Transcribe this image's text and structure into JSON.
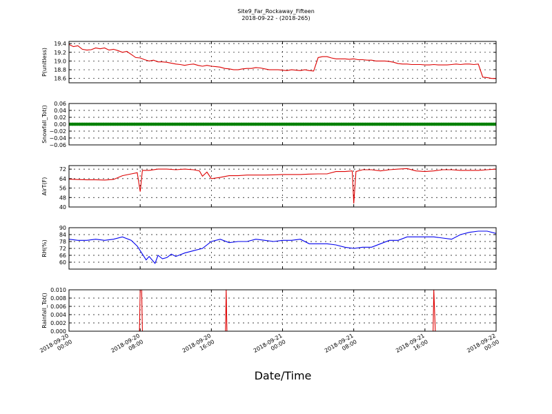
{
  "figure": {
    "title_line1": "Site9_Far_Rockaway_Fifteen",
    "title_line2": "2018-09-22 - (2018-265)",
    "xlabel": "Date/Time"
  },
  "chart_data": [
    {
      "type": "line",
      "ylabel": "P(unitless)",
      "xlim": [
        "2018-09-20 00:00",
        "2018-09-22 00:00"
      ],
      "ylim": [
        18.5,
        19.45
      ],
      "yticks": [
        18.6,
        18.8,
        19.0,
        19.2,
        19.4
      ],
      "ytick_labels": [
        "18.6",
        "18.8",
        "19.0",
        "19.2",
        "19.4"
      ],
      "grid": true,
      "color": "#dd0000",
      "series": [
        {
          "x": [
            "2018-09-20 00:00",
            "2018-09-20 00:30",
            "2018-09-20 01:00",
            "2018-09-20 01:30",
            "2018-09-20 02:00",
            "2018-09-20 02:30",
            "2018-09-20 03:00",
            "2018-09-20 03:30",
            "2018-09-20 04:00",
            "2018-09-20 04:30",
            "2018-09-20 05:00",
            "2018-09-20 05:30",
            "2018-09-20 06:00",
            "2018-09-20 06:30",
            "2018-09-20 07:00",
            "2018-09-20 07:30",
            "2018-09-20 08:00",
            "2018-09-20 08:30",
            "2018-09-20 09:00",
            "2018-09-20 09:30",
            "2018-09-20 10:00",
            "2018-09-20 10:30",
            "2018-09-20 11:00",
            "2018-09-20 11:30",
            "2018-09-20 12:00",
            "2018-09-20 12:30",
            "2018-09-20 13:00",
            "2018-09-20 13:30",
            "2018-09-20 14:00",
            "2018-09-20 14:30",
            "2018-09-20 15:00",
            "2018-09-20 15:30",
            "2018-09-20 16:00",
            "2018-09-20 16:30",
            "2018-09-20 17:00",
            "2018-09-20 17:30",
            "2018-09-20 18:00",
            "2018-09-20 18:30",
            "2018-09-20 19:00",
            "2018-09-20 19:30",
            "2018-09-20 20:00",
            "2018-09-20 20:30",
            "2018-09-20 21:00",
            "2018-09-20 21:30",
            "2018-09-20 22:00",
            "2018-09-20 22:30",
            "2018-09-20 23:00",
            "2018-09-20 23:30",
            "2018-09-21 00:00",
            "2018-09-21 00:30",
            "2018-09-21 01:00",
            "2018-09-21 01:30",
            "2018-09-21 02:00",
            "2018-09-21 02:30",
            "2018-09-21 03:00",
            "2018-09-21 03:30",
            "2018-09-21 04:00",
            "2018-09-21 04:30",
            "2018-09-21 05:00",
            "2018-09-21 05:30",
            "2018-09-21 06:00",
            "2018-09-21 06:30",
            "2018-09-21 07:00",
            "2018-09-21 07:30",
            "2018-09-21 08:00",
            "2018-09-21 08:30",
            "2018-09-21 09:00",
            "2018-09-21 09:30",
            "2018-09-21 10:00",
            "2018-09-21 10:30",
            "2018-09-21 11:00",
            "2018-09-21 11:30",
            "2018-09-21 12:00",
            "2018-09-21 12:30",
            "2018-09-21 13:00",
            "2018-09-21 13:30",
            "2018-09-21 14:00",
            "2018-09-21 14:30",
            "2018-09-21 15:00",
            "2018-09-21 15:30",
            "2018-09-21 16:00",
            "2018-09-21 16:30",
            "2018-09-21 17:00",
            "2018-09-21 17:30",
            "2018-09-21 18:00",
            "2018-09-21 18:30",
            "2018-09-21 19:00",
            "2018-09-21 19:30",
            "2018-09-21 20:00",
            "2018-09-21 20:30",
            "2018-09-21 21:00",
            "2018-09-21 21:30",
            "2018-09-21 22:00",
            "2018-09-21 22:30",
            "2018-09-21 23:00",
            "2018-09-21 23:30",
            "2018-09-22 00:00"
          ],
          "y": [
            19.38,
            19.33,
            19.35,
            19.27,
            19.25,
            19.26,
            19.3,
            19.28,
            19.3,
            19.25,
            19.27,
            19.24,
            19.2,
            19.22,
            19.15,
            19.08,
            19.07,
            19.03,
            19.0,
            19.02,
            18.98,
            18.98,
            18.97,
            18.95,
            18.93,
            18.92,
            18.9,
            18.92,
            18.93,
            18.9,
            18.88,
            18.9,
            18.88,
            18.87,
            18.86,
            18.83,
            18.82,
            18.8,
            18.8,
            18.82,
            18.83,
            18.83,
            18.85,
            18.84,
            18.82,
            18.8,
            18.8,
            18.8,
            18.79,
            18.78,
            18.8,
            18.79,
            18.78,
            18.8,
            18.78,
            18.77,
            19.08,
            19.1,
            19.1,
            19.07,
            19.05,
            19.05,
            19.05,
            19.04,
            19.05,
            19.03,
            19.03,
            19.02,
            19.02,
            19.0,
            19.0,
            19.0,
            18.99,
            18.97,
            18.94,
            18.93,
            18.93,
            18.92,
            18.92,
            18.92,
            18.91,
            18.91,
            18.92,
            18.91,
            18.91,
            18.91,
            18.92,
            18.93,
            18.92,
            18.93,
            18.93,
            18.92,
            18.93,
            18.63,
            18.62,
            18.6,
            18.6
          ]
        }
      ]
    },
    {
      "type": "scatter",
      "ylabel": "Snowfall_Tot()",
      "xlim": [
        "2018-09-20 00:00",
        "2018-09-22 00:00"
      ],
      "ylim": [
        -0.06,
        0.06
      ],
      "yticks": [
        -0.06,
        -0.04,
        -0.02,
        0.0,
        0.02,
        0.04,
        0.06
      ],
      "ytick_labels": [
        "−0.06",
        "−0.04",
        "−0.02",
        "0.00",
        "0.02",
        "0.04",
        "0.06"
      ],
      "grid": true,
      "color": "#008000",
      "series": [
        {
          "constant_y": 0.0
        }
      ]
    },
    {
      "type": "line",
      "ylabel": "AirT(F)",
      "xlim": [
        "2018-09-20 00:00",
        "2018-09-22 00:00"
      ],
      "ylim": [
        40,
        75
      ],
      "yticks": [
        40,
        48,
        56,
        64,
        72
      ],
      "ytick_labels": [
        "40",
        "48",
        "56",
        "64",
        "72"
      ],
      "grid": true,
      "color": "#dd0000",
      "series": [
        {
          "x": [
            "2018-09-20 00:00",
            "2018-09-20 01:00",
            "2018-09-20 02:00",
            "2018-09-20 03:00",
            "2018-09-20 04:00",
            "2018-09-20 05:00",
            "2018-09-20 06:00",
            "2018-09-20 07:00",
            "2018-09-20 07:40",
            "2018-09-20 08:00",
            "2018-09-20 08:15",
            "2018-09-20 09:00",
            "2018-09-20 10:00",
            "2018-09-20 11:00",
            "2018-09-20 12:00",
            "2018-09-20 13:00",
            "2018-09-20 14:00",
            "2018-09-20 14:40",
            "2018-09-20 15:00",
            "2018-09-20 15:30",
            "2018-09-20 16:00",
            "2018-09-20 17:00",
            "2018-09-20 18:00",
            "2018-09-20 19:00",
            "2018-09-20 20:00",
            "2018-09-20 21:00",
            "2018-09-20 22:00",
            "2018-09-20 23:00",
            "2018-09-21 00:00",
            "2018-09-21 01:00",
            "2018-09-21 02:00",
            "2018-09-21 03:00",
            "2018-09-21 04:00",
            "2018-09-21 05:00",
            "2018-09-21 06:00",
            "2018-09-21 07:00",
            "2018-09-21 07:50",
            "2018-09-21 08:00",
            "2018-09-21 08:15",
            "2018-09-21 09:00",
            "2018-09-21 10:00",
            "2018-09-21 11:00",
            "2018-09-21 12:00",
            "2018-09-21 13:00",
            "2018-09-21 14:00",
            "2018-09-21 15:00",
            "2018-09-21 16:00",
            "2018-09-21 17:00",
            "2018-09-21 18:00",
            "2018-09-21 19:00",
            "2018-09-21 20:00",
            "2018-09-21 21:00",
            "2018-09-21 22:00",
            "2018-09-21 23:00",
            "2018-09-22 00:00"
          ],
          "y": [
            63.5,
            63.2,
            63.0,
            63.0,
            62.8,
            63.3,
            66.5,
            68.0,
            69.0,
            53.0,
            71.0,
            71.0,
            72.0,
            72.0,
            71.5,
            72.0,
            71.5,
            70.5,
            66.0,
            69.5,
            64.0,
            65.0,
            66.5,
            66.5,
            67.0,
            67.0,
            67.0,
            67.2,
            67.5,
            67.5,
            67.5,
            67.8,
            68.0,
            68.0,
            70.0,
            70.0,
            70.5,
            43.0,
            70.0,
            71.5,
            71.5,
            70.5,
            71.5,
            72.0,
            72.5,
            70.5,
            70.0,
            70.5,
            71.5,
            71.5,
            71.0,
            71.0,
            71.0,
            71.5,
            72.0
          ]
        }
      ]
    },
    {
      "type": "line",
      "ylabel": "RH(%)",
      "xlim": [
        "2018-09-20 00:00",
        "2018-09-22 00:00"
      ],
      "ylim": [
        54,
        90
      ],
      "yticks": [
        60,
        66,
        72,
        78,
        84,
        90
      ],
      "ytick_labels": [
        "60",
        "66",
        "72",
        "78",
        "84",
        "90"
      ],
      "grid": true,
      "color": "#0000ee",
      "series": [
        {
          "x": [
            "2018-09-20 00:00",
            "2018-09-20 01:00",
            "2018-09-20 02:00",
            "2018-09-20 03:00",
            "2018-09-20 04:00",
            "2018-09-20 05:00",
            "2018-09-20 06:00",
            "2018-09-20 07:00",
            "2018-09-20 07:40",
            "2018-09-20 08:00",
            "2018-09-20 08:40",
            "2018-09-20 09:00",
            "2018-09-20 09:40",
            "2018-09-20 10:00",
            "2018-09-20 10:30",
            "2018-09-20 11:00",
            "2018-09-20 11:30",
            "2018-09-20 12:00",
            "2018-09-20 13:00",
            "2018-09-20 14:00",
            "2018-09-20 15:00",
            "2018-09-20 16:00",
            "2018-09-20 17:00",
            "2018-09-20 18:00",
            "2018-09-20 19:00",
            "2018-09-20 20:00",
            "2018-09-20 21:00",
            "2018-09-20 22:00",
            "2018-09-20 23:00",
            "2018-09-21 00:00",
            "2018-09-21 01:00",
            "2018-09-21 02:00",
            "2018-09-21 03:00",
            "2018-09-21 04:00",
            "2018-09-21 05:00",
            "2018-09-21 06:00",
            "2018-09-21 07:00",
            "2018-09-21 08:00",
            "2018-09-21 09:00",
            "2018-09-21 10:00",
            "2018-09-21 11:00",
            "2018-09-21 12:00",
            "2018-09-21 13:00",
            "2018-09-21 14:00",
            "2018-09-21 15:00",
            "2018-09-21 16:00",
            "2018-09-21 17:00",
            "2018-09-21 18:00",
            "2018-09-21 19:00",
            "2018-09-21 20:00",
            "2018-09-21 21:00",
            "2018-09-21 22:00",
            "2018-09-21 23:00",
            "2018-09-22 00:00"
          ],
          "y": [
            80,
            79,
            79,
            80,
            79,
            80,
            82,
            79,
            74,
            70,
            62,
            65,
            59,
            66,
            63,
            64,
            67,
            65,
            68,
            70,
            72,
            78,
            80,
            77,
            78,
            78,
            80,
            79,
            78,
            79,
            79,
            80,
            76,
            76,
            76,
            75,
            73,
            72,
            73,
            73,
            76,
            79,
            79,
            82,
            82,
            82,
            82,
            81,
            80,
            84,
            86,
            87,
            87,
            85
          ]
        }
      ]
    },
    {
      "type": "line",
      "ylabel": "Rainfall_Tot()",
      "xlim": [
        "2018-09-20 00:00",
        "2018-09-22 00:00"
      ],
      "ylim": [
        0.0,
        0.01
      ],
      "yticks": [
        0.0,
        0.002,
        0.004,
        0.006,
        0.008,
        0.01
      ],
      "ytick_labels": [
        "0.000",
        "0.002",
        "0.004",
        "0.006",
        "0.008",
        "0.010"
      ],
      "grid": true,
      "color": "#dd0000",
      "series": [
        {
          "x": [
            "2018-09-20 00:00",
            "2018-09-20 07:55",
            "2018-09-20 08:00",
            "2018-09-20 08:10",
            "2018-09-20 08:15",
            "2018-09-20 17:35",
            "2018-09-20 17:40",
            "2018-09-20 17:45",
            "2018-09-21 16:55",
            "2018-09-21 17:00",
            "2018-09-21 17:10",
            "2018-09-22 00:00"
          ],
          "y": [
            0,
            0,
            0.01,
            0.01,
            0,
            0,
            0.01,
            0,
            0,
            0.01,
            0,
            0
          ]
        }
      ]
    }
  ],
  "xaxis": {
    "tick_labels": [
      [
        "2018-09-20",
        "00:00"
      ],
      [
        "2018-09-20",
        "08:00"
      ],
      [
        "2018-09-20",
        "16:00"
      ],
      [
        "2018-09-21",
        "00:00"
      ],
      [
        "2018-09-21",
        "08:00"
      ],
      [
        "2018-09-21",
        "16:00"
      ],
      [
        "2018-09-22",
        "00:00"
      ]
    ]
  }
}
